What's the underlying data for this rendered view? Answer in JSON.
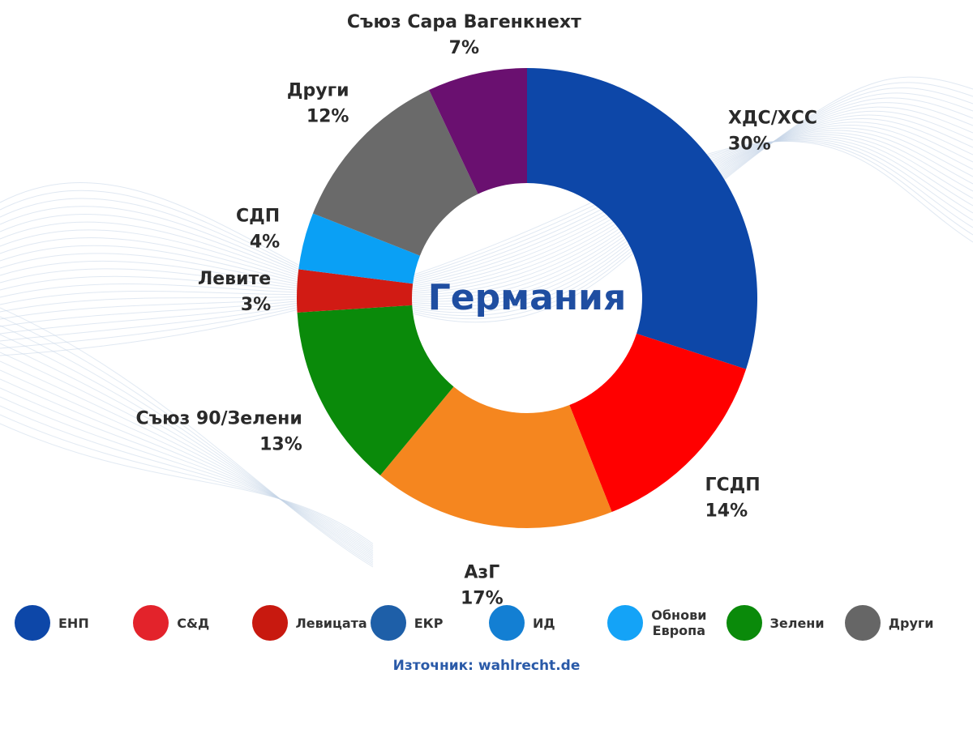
{
  "chart_data": {
    "type": "pie",
    "title": "Германия",
    "slices": [
      {
        "label": "ХДС/ХСС",
        "value": 30,
        "value_label": "30%",
        "color": "#0d47a8"
      },
      {
        "label": "ГСДП",
        "value": 14,
        "value_label": "14%",
        "color": "#ff0000"
      },
      {
        "label": "АзГ",
        "value": 17,
        "value_label": "17%",
        "color": "#f5861f"
      },
      {
        "label": "Съюз 90/Зелени",
        "value": 13,
        "value_label": "13%",
        "color": "#0a8a0a"
      },
      {
        "label": "Левите",
        "value": 3,
        "value_label": "3%",
        "color": "#d11b14"
      },
      {
        "label": "СДП",
        "value": 4,
        "value_label": "4%",
        "color": "#0aa0f5"
      },
      {
        "label": "Други",
        "value": 12,
        "value_label": "12%",
        "color": "#6a6a6a"
      },
      {
        "label": "Съюз Сара Вагенкнехт",
        "value": 7,
        "value_label": "7%",
        "color": "#6a1070"
      }
    ],
    "legend": [
      {
        "label": "ЕНП",
        "color": "#0d47a8"
      },
      {
        "label": "С&Д",
        "color": "#e3232b"
      },
      {
        "label": "Левицата",
        "color": "#c8190f"
      },
      {
        "label": "ЕКР",
        "color": "#1e5fa8"
      },
      {
        "label": "ИД",
        "color": "#137fd3"
      },
      {
        "label": "Обнови\nЕвропа",
        "color": "#14a3f7"
      },
      {
        "label": "Зелени",
        "color": "#0a8a0a"
      },
      {
        "label": "Други",
        "color": "#666666"
      }
    ],
    "legend_placement": "bottom"
  },
  "source": "Източник: wahlrecht.de"
}
